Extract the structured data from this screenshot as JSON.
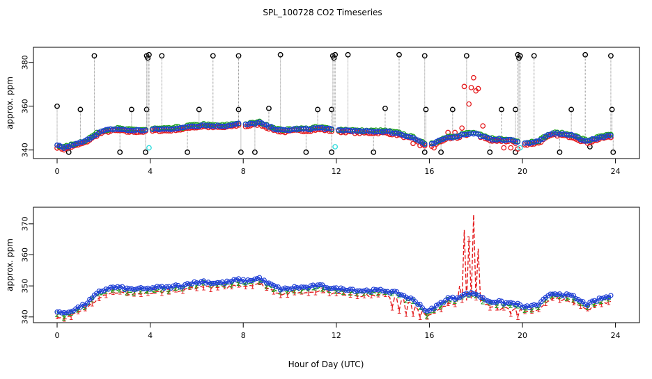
{
  "title": "SPL_100728  CO2 Timeseries",
  "xlabel": "Hour of Day (UTC)",
  "colors": {
    "black": "#000000",
    "red": "#e41a1c",
    "green": "#1ca01c",
    "blue": "#1f3fd6",
    "cyan": "#33dddd",
    "gray": "#8c8c8c",
    "frame": "#000000"
  },
  "chart_data": [
    {
      "type": "scatter",
      "name": "top-panel",
      "ylabel": "approx. ppm",
      "xlim": [
        0,
        24
      ],
      "ylim": [
        338,
        385
      ],
      "xticks": [
        0,
        4,
        8,
        12,
        16,
        20,
        24
      ],
      "yticks": [
        340,
        360,
        380
      ],
      "baseline": [
        [
          0.0,
          342
        ],
        [
          0.3,
          341
        ],
        [
          0.6,
          342
        ],
        [
          0.9,
          343
        ],
        [
          1.2,
          344
        ],
        [
          1.5,
          346
        ],
        [
          1.8,
          348
        ],
        [
          2.1,
          349
        ],
        [
          2.4,
          349.5
        ],
        [
          2.7,
          349.5
        ],
        [
          3.0,
          349
        ],
        [
          3.3,
          349
        ],
        [
          3.6,
          349
        ],
        [
          3.9,
          349
        ],
        [
          4.2,
          349.5
        ],
        [
          4.5,
          349.5
        ],
        [
          4.8,
          349.5
        ],
        [
          5.1,
          350
        ],
        [
          5.4,
          350
        ],
        [
          5.7,
          351
        ],
        [
          6.0,
          351
        ],
        [
          6.3,
          351.5
        ],
        [
          6.6,
          351
        ],
        [
          6.9,
          351
        ],
        [
          7.2,
          351
        ],
        [
          7.5,
          351.5
        ],
        [
          7.8,
          352
        ],
        [
          8.1,
          351.5
        ],
        [
          8.4,
          352
        ],
        [
          8.7,
          352.5
        ],
        [
          9.0,
          351
        ],
        [
          9.3,
          350
        ],
        [
          9.6,
          349
        ],
        [
          9.9,
          349
        ],
        [
          10.2,
          349.5
        ],
        [
          10.5,
          349.5
        ],
        [
          10.8,
          349.5
        ],
        [
          11.1,
          350
        ],
        [
          11.4,
          350
        ],
        [
          11.7,
          349.5
        ],
        [
          12.0,
          349
        ],
        [
          12.3,
          349
        ],
        [
          12.6,
          349
        ],
        [
          12.9,
          348.5
        ],
        [
          13.2,
          348.5
        ],
        [
          13.5,
          348.5
        ],
        [
          13.8,
          348.5
        ],
        [
          14.1,
          348.5
        ],
        [
          14.4,
          348
        ],
        [
          14.7,
          347.5
        ],
        [
          15.0,
          346.5
        ],
        [
          15.3,
          345.5
        ],
        [
          15.6,
          344
        ],
        [
          15.9,
          341.5
        ],
        [
          16.2,
          343
        ],
        [
          16.5,
          344.5
        ],
        [
          16.8,
          346
        ],
        [
          17.1,
          346
        ],
        [
          17.4,
          347
        ],
        [
          17.7,
          347.5
        ],
        [
          18.0,
          347.5
        ],
        [
          18.3,
          346
        ],
        [
          18.6,
          345
        ],
        [
          18.9,
          345
        ],
        [
          19.2,
          344.5
        ],
        [
          19.5,
          344.5
        ],
        [
          19.8,
          344
        ],
        [
          20.1,
          343
        ],
        [
          20.4,
          343.5
        ],
        [
          20.7,
          344
        ],
        [
          21.0,
          346
        ],
        [
          21.3,
          347.5
        ],
        [
          21.6,
          347.5
        ],
        [
          21.9,
          347
        ],
        [
          22.2,
          346.5
        ],
        [
          22.5,
          345
        ],
        [
          22.8,
          344
        ],
        [
          23.1,
          345
        ],
        [
          23.4,
          346
        ],
        [
          23.7,
          346.5
        ]
      ],
      "series": [
        {
          "name": "red",
          "color_key": "red",
          "offset": -0.7,
          "overrides": [
            [
              15.3,
              343
            ],
            [
              15.6,
              342
            ],
            [
              16.2,
              341
            ],
            [
              16.8,
              348
            ],
            [
              17.1,
              348
            ],
            [
              17.4,
              350
            ],
            [
              17.5,
              369
            ],
            [
              17.7,
              361
            ],
            [
              17.8,
              368.5
            ],
            [
              17.9,
              373
            ],
            [
              18.0,
              367
            ],
            [
              18.1,
              368
            ],
            [
              18.3,
              351
            ],
            [
              19.2,
              341
            ],
            [
              19.5,
              341
            ],
            [
              19.8,
              340.5
            ]
          ]
        },
        {
          "name": "green",
          "color_key": "green",
          "offset": 0.3,
          "overrides": [
            [
              19.9,
              340.5
            ]
          ]
        },
        {
          "name": "blue",
          "color_key": "blue",
          "offset": 0.0,
          "overrides": []
        }
      ],
      "spikes": [
        {
          "x": 0.0,
          "y": 360
        },
        {
          "x": 0.5,
          "y": 339
        },
        {
          "x": 1.0,
          "y": 358.5
        },
        {
          "x": 1.6,
          "y": 383
        },
        {
          "x": 2.7,
          "y": 339
        },
        {
          "x": 3.2,
          "y": 358.5
        },
        {
          "x": 3.8,
          "y": 339
        },
        {
          "x": 3.85,
          "y": 358.5
        },
        {
          "x": 3.85,
          "y": 383
        },
        {
          "x": 3.9,
          "y": 382
        },
        {
          "x": 3.95,
          "y": 383.5
        },
        {
          "x": 4.5,
          "y": 383
        },
        {
          "x": 5.6,
          "y": 339
        },
        {
          "x": 6.1,
          "y": 358.5
        },
        {
          "x": 6.7,
          "y": 383
        },
        {
          "x": 7.8,
          "y": 358.5
        },
        {
          "x": 7.8,
          "y": 383
        },
        {
          "x": 7.9,
          "y": 339
        },
        {
          "x": 8.5,
          "y": 339
        },
        {
          "x": 9.1,
          "y": 359
        },
        {
          "x": 9.6,
          "y": 383.5
        },
        {
          "x": 10.7,
          "y": 339
        },
        {
          "x": 11.2,
          "y": 358.5
        },
        {
          "x": 11.8,
          "y": 339
        },
        {
          "x": 11.8,
          "y": 358.5
        },
        {
          "x": 11.85,
          "y": 383
        },
        {
          "x": 11.9,
          "y": 382
        },
        {
          "x": 11.95,
          "y": 383.5
        },
        {
          "x": 12.5,
          "y": 383.5
        },
        {
          "x": 13.6,
          "y": 339
        },
        {
          "x": 14.1,
          "y": 359
        },
        {
          "x": 14.7,
          "y": 383.5
        },
        {
          "x": 15.8,
          "y": 339
        },
        {
          "x": 15.8,
          "y": 383
        },
        {
          "x": 15.85,
          "y": 358.5
        },
        {
          "x": 16.5,
          "y": 339
        },
        {
          "x": 17.0,
          "y": 358.5
        },
        {
          "x": 17.6,
          "y": 383
        },
        {
          "x": 18.6,
          "y": 339
        },
        {
          "x": 19.1,
          "y": 358.5
        },
        {
          "x": 19.7,
          "y": 339
        },
        {
          "x": 19.7,
          "y": 358.5
        },
        {
          "x": 19.8,
          "y": 383.5
        },
        {
          "x": 19.85,
          "y": 382
        },
        {
          "x": 19.9,
          "y": 383
        },
        {
          "x": 20.5,
          "y": 383
        },
        {
          "x": 21.6,
          "y": 339
        },
        {
          "x": 22.1,
          "y": 358.5
        },
        {
          "x": 22.7,
          "y": 383.5
        },
        {
          "x": 22.9,
          "y": 341.5
        },
        {
          "x": 23.8,
          "y": 383
        },
        {
          "x": 23.85,
          "y": 358.5
        },
        {
          "x": 23.9,
          "y": 339
        }
      ],
      "cyan_points": [
        {
          "x": 3.95,
          "y": 341
        },
        {
          "x": 11.95,
          "y": 341.5
        },
        {
          "x": 19.9,
          "y": 341
        }
      ]
    },
    {
      "type": "line",
      "name": "bottom-panel",
      "ylabel": "approx. ppm",
      "xlim": [
        0,
        24
      ],
      "ylim": [
        339.5,
        374
      ],
      "xticks": [
        0,
        4,
        8,
        12,
        16,
        20,
        24
      ],
      "yticks": [
        340,
        350,
        360,
        370
      ],
      "series": [
        {
          "name": "1",
          "symbol": "1",
          "color_key": "red",
          "offset": -1.6,
          "overrides": [
            [
              14.4,
              343
            ],
            [
              14.7,
              342
            ],
            [
              15.0,
              341
            ],
            [
              15.3,
              341
            ],
            [
              15.6,
              340
            ],
            [
              16.2,
              342
            ],
            [
              17.0,
              344
            ],
            [
              17.3,
              350
            ],
            [
              17.5,
              368
            ],
            [
              17.7,
              365
            ],
            [
              17.9,
              373
            ],
            [
              18.1,
              362
            ],
            [
              18.3,
              346
            ],
            [
              18.6,
              343
            ],
            [
              19.0,
              342
            ],
            [
              19.5,
              341
            ],
            [
              19.8,
              340
            ]
          ]
        },
        {
          "name": "2",
          "symbol": "2",
          "color_key": "green",
          "offset": -0.8,
          "overrides": []
        },
        {
          "name": "3",
          "symbol": "3",
          "color_key": "blue",
          "offset": 0.0,
          "overrides": []
        }
      ]
    }
  ]
}
